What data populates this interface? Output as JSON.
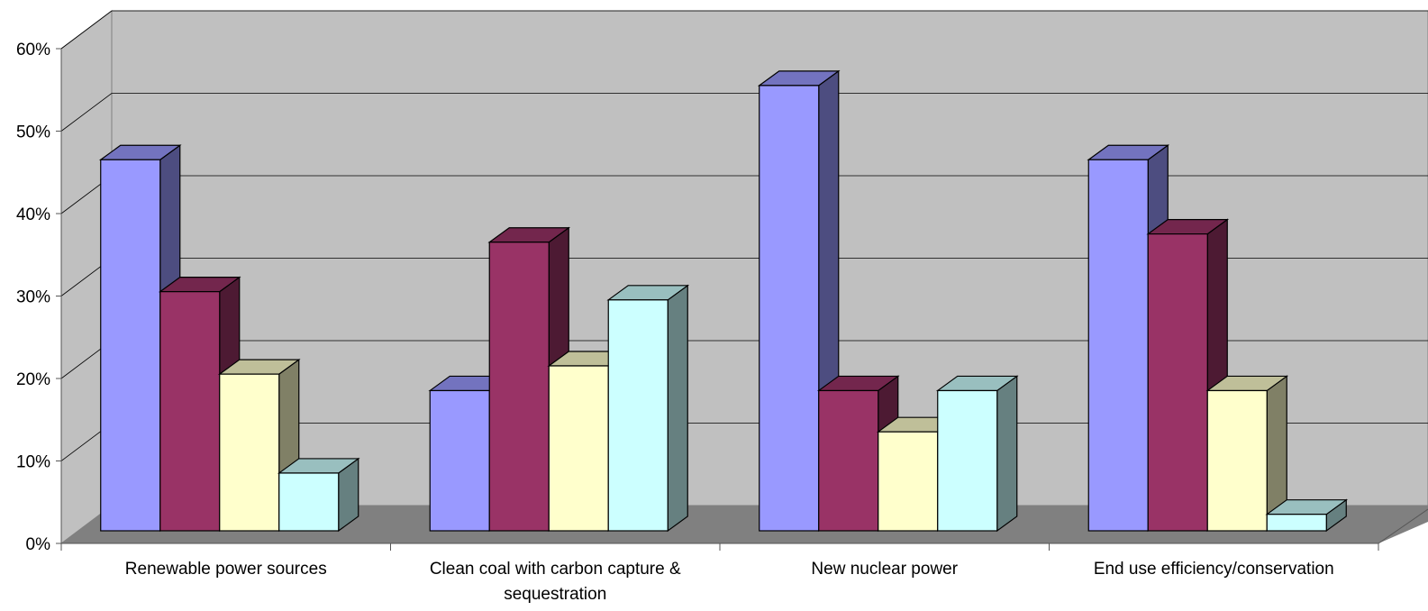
{
  "chart_data": {
    "type": "bar",
    "categories": [
      "Renewable power sources",
      "Clean coal with carbon capture & sequestration",
      "New nuclear power",
      "End use efficiency/conservation"
    ],
    "category_lines": [
      [
        "Renewable power sources"
      ],
      [
        "Clean coal with carbon capture &",
        "sequestration"
      ],
      [
        "New nuclear power"
      ],
      [
        "End use efficiency/conservation"
      ]
    ],
    "series": [
      {
        "values": [
          45,
          17,
          54,
          45
        ],
        "color": "#9999ff"
      },
      {
        "values": [
          29,
          35,
          17,
          36
        ],
        "color": "#993366"
      },
      {
        "values": [
          19,
          20,
          12,
          17
        ],
        "color": "#ffffcc"
      },
      {
        "values": [
          7,
          28,
          17,
          2
        ],
        "color": "#ccffff"
      }
    ],
    "y_ticks": [
      "0%",
      "10%",
      "20%",
      "30%",
      "40%",
      "50%",
      "60%"
    ],
    "ylim": [
      0,
      60
    ],
    "title": "",
    "xlabel": "",
    "ylabel": "",
    "grid": true,
    "style": "3d-clustered-column",
    "wall_color": "#c0c0c0",
    "floor_color": "#808080"
  }
}
